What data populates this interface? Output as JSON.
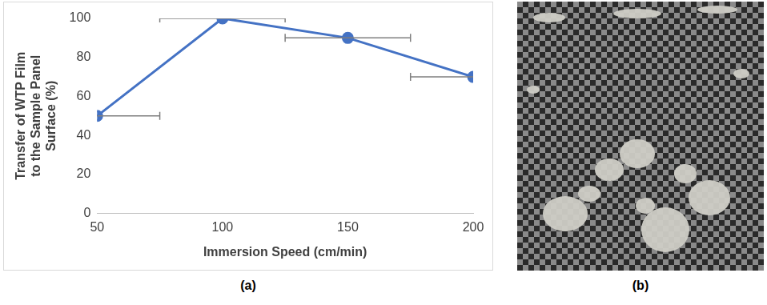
{
  "chart_data": {
    "type": "line",
    "x": [
      50,
      100,
      150,
      200
    ],
    "values": [
      50,
      100,
      90,
      70
    ],
    "x_errors": [
      25,
      25,
      25,
      25
    ],
    "x_label": "Immersion Speed (cm/min)",
    "y_label": "Transfer of WTP Film to the Sample Panel Surface (%)",
    "xlim": [
      50,
      200
    ],
    "xticks": [
      50,
      100,
      150,
      200
    ],
    "ylim": [
      0,
      100
    ],
    "yticks": [
      0,
      20,
      40,
      60,
      80,
      100
    ],
    "color": "#4472c4",
    "marker": "circle",
    "grid": false
  },
  "panel_labels": [
    "(a)",
    "(b)"
  ]
}
